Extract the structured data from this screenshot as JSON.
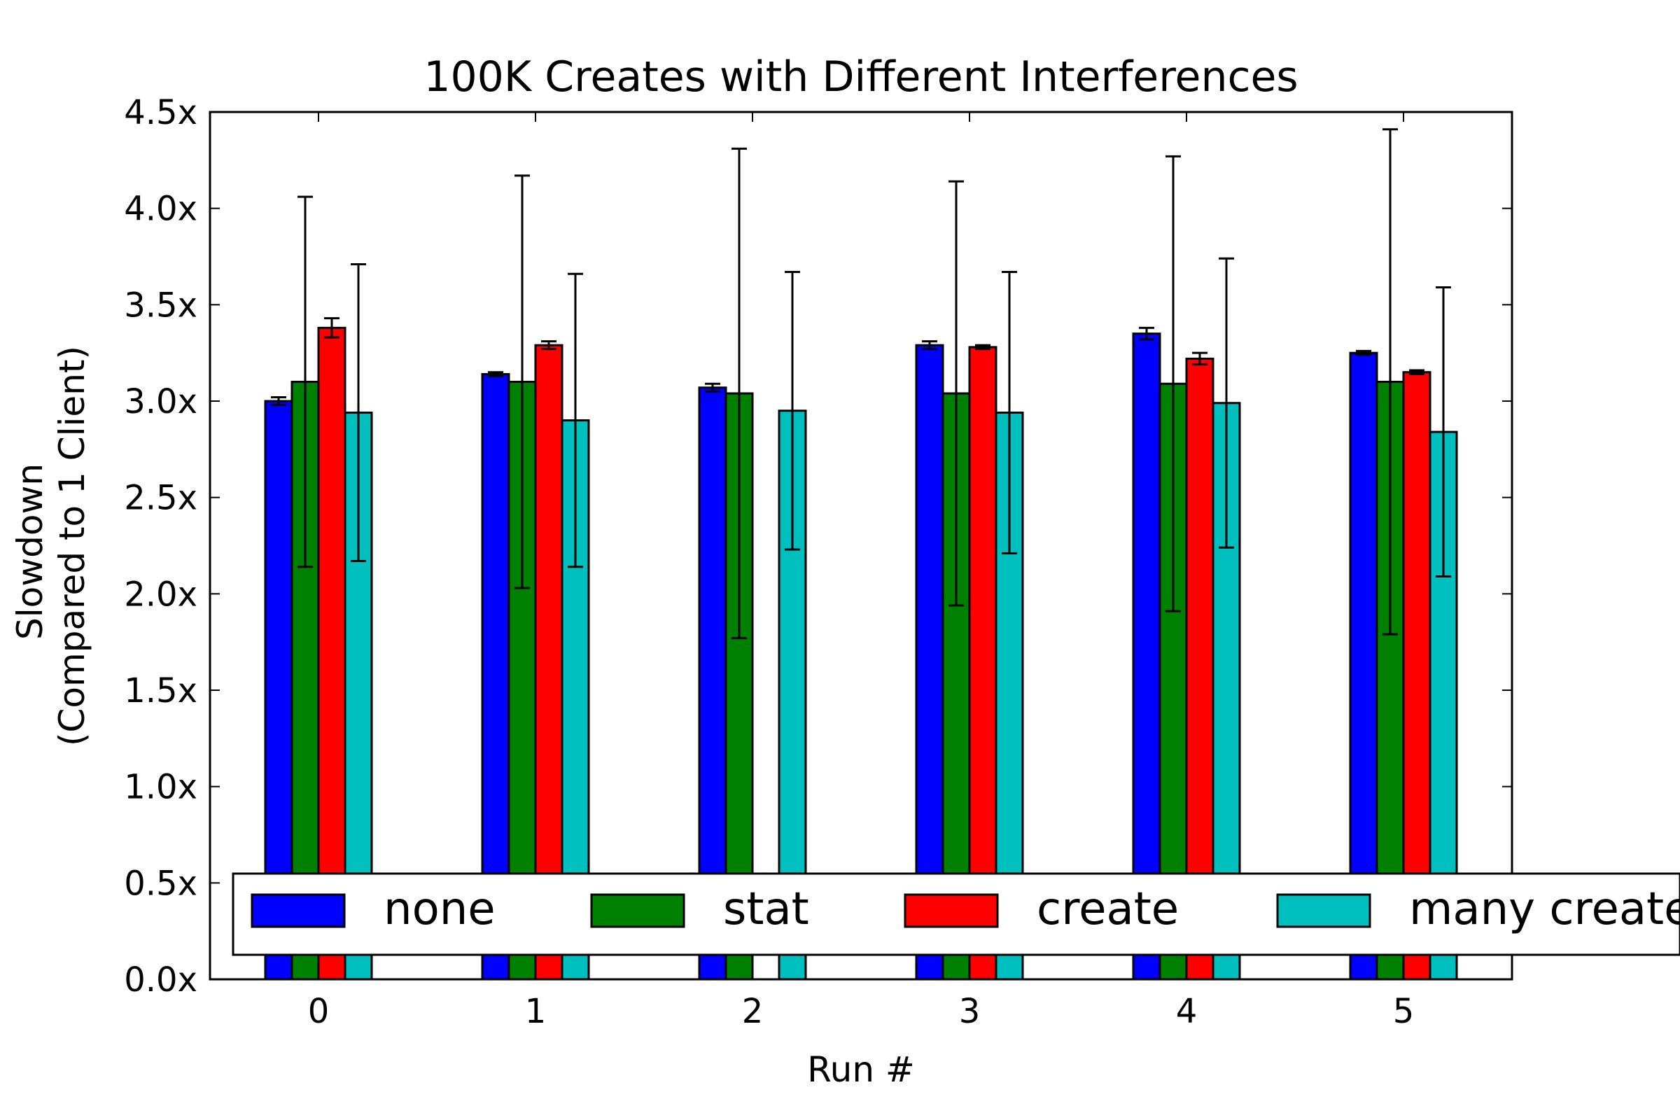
{
  "chart_data": {
    "type": "bar",
    "title": "100K Creates with Different Interferences",
    "xlabel": "Run #",
    "ylabel_line1": "Slowdown",
    "ylabel_line2": "(Compared to 1 Client)",
    "categories": [
      "0",
      "1",
      "2",
      "3",
      "4",
      "5"
    ],
    "ylim": [
      0,
      4.5
    ],
    "yticks": [
      0.0,
      0.5,
      1.0,
      1.5,
      2.0,
      2.5,
      3.0,
      3.5,
      4.0,
      4.5
    ],
    "ytick_labels": [
      "0.0x",
      "0.5x",
      "1.0x",
      "1.5x",
      "2.0x",
      "2.5x",
      "3.0x",
      "3.5x",
      "4.0x",
      "4.5x"
    ],
    "legend_position": "bottom",
    "grid": false,
    "series": [
      {
        "name": "none",
        "color": "#0000ff",
        "values": [
          3.0,
          3.14,
          3.07,
          3.29,
          3.35,
          3.25
        ],
        "errors": [
          0.02,
          0.01,
          0.02,
          0.02,
          0.03,
          0.01
        ]
      },
      {
        "name": "stat",
        "color": "#008000",
        "values": [
          3.1,
          3.1,
          3.04,
          3.04,
          3.09,
          3.1
        ],
        "errors": [
          0.96,
          1.07,
          1.27,
          1.1,
          1.18,
          1.31
        ]
      },
      {
        "name": "create",
        "color": "#ff0000",
        "values": [
          3.38,
          3.29,
          0,
          3.28,
          3.22,
          3.15
        ],
        "errors": [
          0.05,
          0.02,
          0,
          0.01,
          0.03,
          0.01
        ]
      },
      {
        "name": "many creates",
        "color": "#00bfbf",
        "values": [
          2.94,
          2.9,
          2.95,
          2.94,
          2.99,
          2.84
        ],
        "errors": [
          0.77,
          0.76,
          0.72,
          0.73,
          0.75,
          0.75
        ]
      }
    ]
  }
}
